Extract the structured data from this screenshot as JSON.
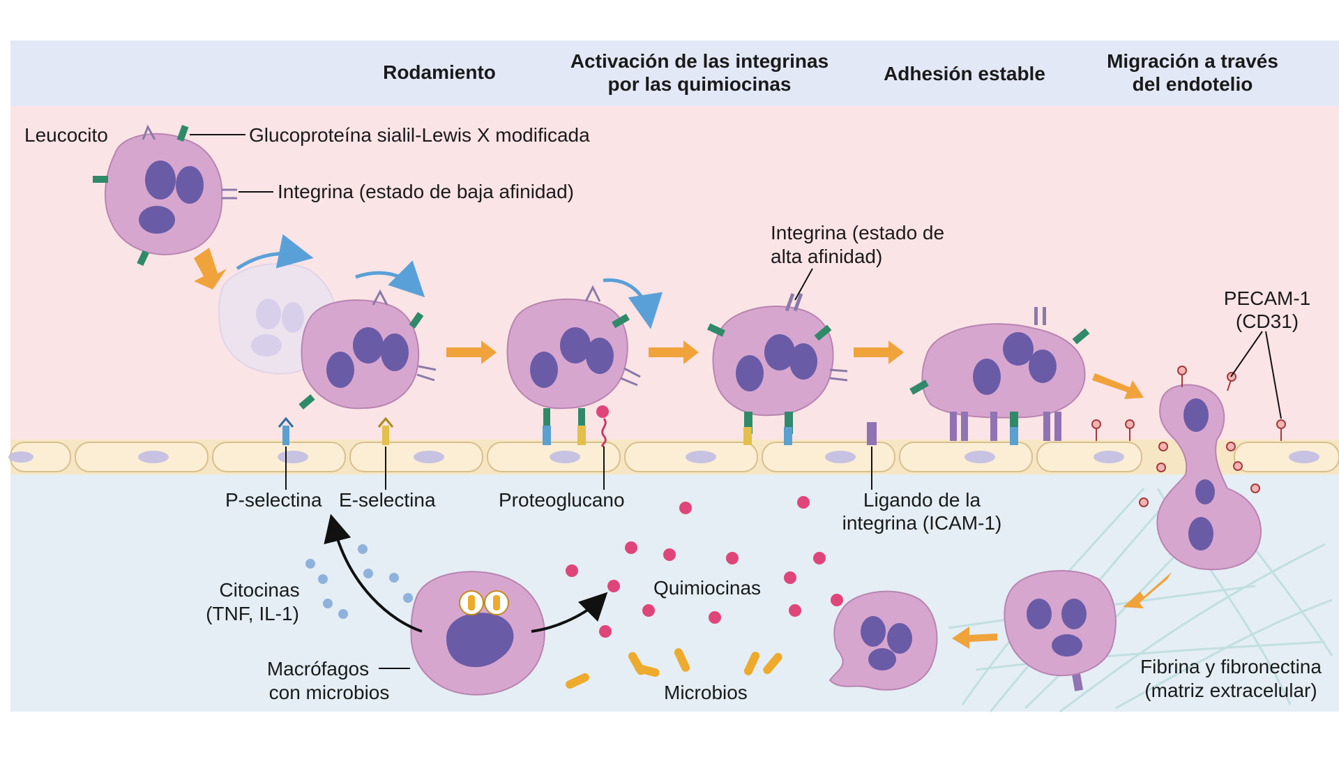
{
  "header": {
    "stages": [
      {
        "lines": [
          "Rodamiento"
        ]
      },
      {
        "lines": [
          "Activación de las integrinas",
          "por las quimiocinas"
        ]
      },
      {
        "lines": [
          "Adhesión estable"
        ]
      },
      {
        "lines": [
          "Migración a través",
          "del endotelio"
        ]
      }
    ]
  },
  "labels": {
    "leucocito": "Leucocito",
    "glycoprotein": "Glucoproteína sialil-Lewis X modificada",
    "integrin_low": "Integrina (estado de baja afinidad)",
    "integrin_high_1": "Integrina (estado de",
    "integrin_high_2": "alta afinidad)",
    "pecam_1": "PECAM-1",
    "pecam_2": "(CD31)",
    "p_selectin": "P-selectina",
    "e_selectin": "E-selectina",
    "proteoglycan": "Proteoglucano",
    "icam_1": "Ligando de la",
    "icam_2": "integrina (ICAM-1)",
    "cytokines_1": "Citocinas",
    "cytokines_2": "(TNF, IL-1)",
    "chemokines": "Quimiocinas",
    "macrophage_1": "Macrófagos",
    "macrophage_2": "con microbios",
    "microbes": "Microbios",
    "matrix_1": "Fibrina y fibronectina",
    "matrix_2": "(matriz extracelular)"
  },
  "colors": {
    "header_band": "#e3e8f6",
    "vessel_lumen": "#fbe4e6",
    "tissue": "#e4eef4",
    "endothelium": "#f7e6c4",
    "cell_body": "#d7a6cf",
    "nucleus": "#6a5ba6",
    "arrow": "#f0a33a",
    "chemokine": "#e0457a",
    "cytokine": "#8fb2dd",
    "microbe": "#eeaa2c"
  }
}
